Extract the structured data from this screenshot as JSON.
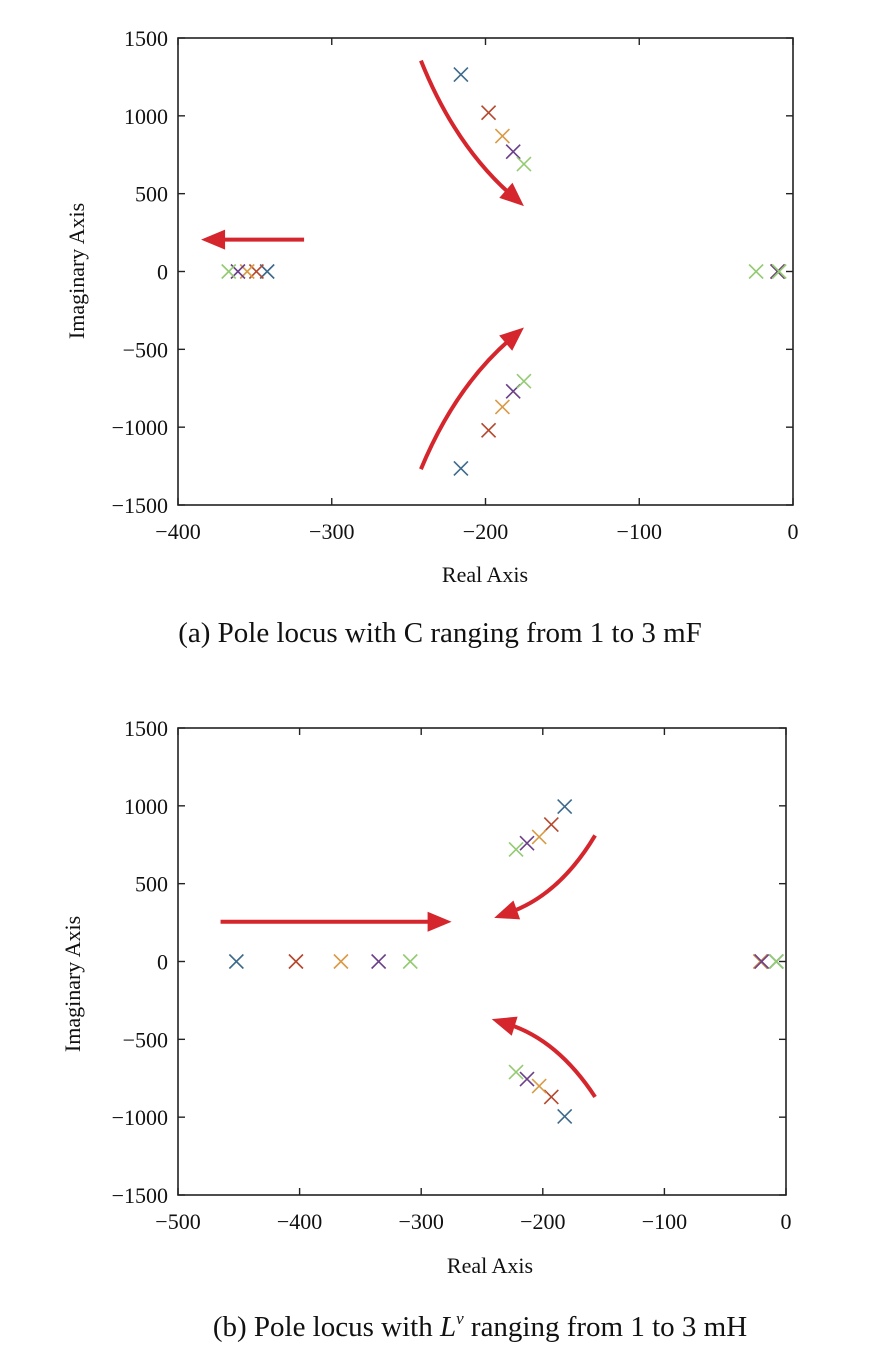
{
  "colors": {
    "blue": "#3d6a8c",
    "red": "#b5472c",
    "orange": "#d99a45",
    "purple": "#6b3f8a",
    "green": "#94cb72",
    "arrow": "#d4262c"
  },
  "chart_data": [
    {
      "type": "scatter",
      "marker": "x",
      "xlabel": "Real Axis",
      "ylabel": "Imaginary Axis",
      "caption": "(a) Pole locus with C ranging from 1 to 3 mF",
      "xlim": [
        -400,
        0
      ],
      "ylim": [
        -1500,
        1500
      ],
      "xticks": [
        -400,
        -300,
        -200,
        -100,
        0
      ],
      "yticks": [
        -1500,
        -1000,
        -500,
        0,
        500,
        1000,
        1500
      ],
      "grid": false,
      "series": [
        {
          "color": "blue",
          "points": [
            [
              -216,
              1265
            ],
            [
              -216,
              -1265
            ],
            [
              -342,
              0
            ],
            [
              -10,
              0
            ]
          ]
        },
        {
          "color": "red",
          "points": [
            [
              -198,
              1020
            ],
            [
              -198,
              -1020
            ],
            [
              -349,
              0
            ],
            [
              -10,
              0
            ]
          ]
        },
        {
          "color": "orange",
          "points": [
            [
              -189,
              870
            ],
            [
              -189,
              -870
            ],
            [
              -355,
              0
            ],
            [
              -10,
              0
            ]
          ]
        },
        {
          "color": "purple",
          "points": [
            [
              -182,
              770
            ],
            [
              -182,
              -770
            ],
            [
              -361,
              0
            ],
            [
              -10,
              0
            ]
          ]
        },
        {
          "color": "green",
          "points": [
            [
              -175,
              690
            ],
            [
              -175,
              -705
            ],
            [
              -367,
              0
            ],
            [
              -24,
              0
            ],
            [
              -9,
              0
            ]
          ]
        }
      ],
      "annotations": [
        {
          "type": "arrow",
          "curve": true,
          "from": [
            -242,
            1355
          ],
          "to": [
            -175,
            420
          ],
          "bend": 0.12
        },
        {
          "type": "arrow",
          "curve": true,
          "from": [
            -242,
            -1270
          ],
          "to": [
            -175,
            -360
          ],
          "bend": -0.12
        },
        {
          "type": "arrow",
          "curve": false,
          "from": [
            -318,
            205
          ],
          "to": [
            -385,
            205
          ]
        }
      ]
    },
    {
      "type": "scatter",
      "marker": "x",
      "xlabel": "Real Axis",
      "ylabel": "Imaginary Axis",
      "caption_prefix": "(b) Pole locus with ",
      "caption_var": "L",
      "caption_sup": "v",
      "caption_suffix": " ranging from 1 to 3 mH",
      "xlim": [
        -500,
        0
      ],
      "ylim": [
        -1500,
        1500
      ],
      "xticks": [
        -500,
        -400,
        -300,
        -200,
        -100,
        0
      ],
      "yticks": [
        -1500,
        -1000,
        -500,
        0,
        500,
        1000,
        1500
      ],
      "grid": false,
      "series": [
        {
          "color": "blue",
          "points": [
            [
              -182,
              995
            ],
            [
              -182,
              -995
            ],
            [
              -452,
              0
            ],
            [
              -8,
              0
            ]
          ]
        },
        {
          "color": "red",
          "points": [
            [
              -193,
              880
            ],
            [
              -193,
              -870
            ],
            [
              -403,
              0
            ],
            [
              -21,
              0
            ]
          ]
        },
        {
          "color": "orange",
          "points": [
            [
              -203,
              800
            ],
            [
              -203,
              -800
            ],
            [
              -366,
              0
            ],
            [
              -21,
              0
            ]
          ]
        },
        {
          "color": "purple",
          "points": [
            [
              -213,
              760
            ],
            [
              -213,
              -755
            ],
            [
              -335,
              0
            ],
            [
              -20,
              0
            ]
          ]
        },
        {
          "color": "green",
          "points": [
            [
              -222,
              720
            ],
            [
              -222,
              -710
            ],
            [
              -309,
              0
            ],
            [
              -8,
              0
            ]
          ]
        }
      ],
      "annotations": [
        {
          "type": "arrow",
          "curve": false,
          "from": [
            -465,
            255
          ],
          "to": [
            -275,
            255
          ]
        },
        {
          "type": "arrow",
          "curve": true,
          "from": [
            -157,
            810
          ],
          "to": [
            -240,
            280
          ],
          "bend": -0.18
        },
        {
          "type": "arrow",
          "curve": true,
          "from": [
            -157,
            -870
          ],
          "to": [
            -242,
            -370
          ],
          "bend": 0.18
        }
      ]
    }
  ]
}
